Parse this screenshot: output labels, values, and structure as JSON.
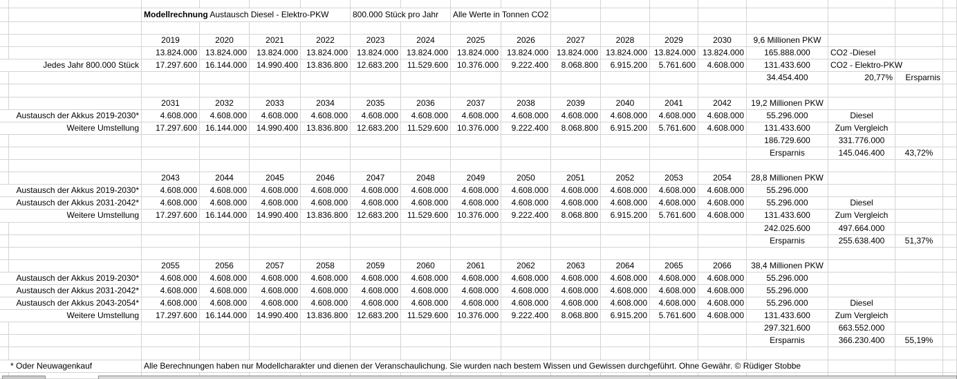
{
  "app": "spreadsheet",
  "colors": {
    "gridline": "#d4d4d4",
    "text": "#000000",
    "background": "#ffffff",
    "tab_fill": "#c9c9c9",
    "tab_fill_long": "#dadada",
    "tab_border": "#8f8f8f"
  },
  "tabbar": {
    "left_tab": "sheet-tab",
    "long_bar": "horizontal-scrollbar"
  },
  "series": {
    "years1": [
      "2019",
      "2020",
      "2021",
      "2022",
      "2023",
      "2024",
      "2025",
      "2026",
      "2027",
      "2028",
      "2029",
      "2030"
    ],
    "years2": [
      "2031",
      "2032",
      "2033",
      "2034",
      "2035",
      "2036",
      "2037",
      "2038",
      "2039",
      "2040",
      "2041",
      "2042"
    ],
    "years3": [
      "2043",
      "2044",
      "2045",
      "2046",
      "2047",
      "2048",
      "2049",
      "2050",
      "2051",
      "2052",
      "2053",
      "2054"
    ],
    "years4": [
      "2055",
      "2056",
      "2057",
      "2058",
      "2059",
      "2060",
      "2061",
      "2062",
      "2063",
      "2064",
      "2065",
      "2066"
    ],
    "elektro": [
      "17.297.600",
      "16.144.000",
      "14.990.400",
      "13.836.800",
      "12.683.200",
      "11.529.600",
      "10.376.000",
      "9.222.400",
      "8.068.800",
      "6.915.200",
      "5.761.600",
      "4.608.000"
    ]
  },
  "rows": [
    {
      "name": "spacer-row",
      "h": 12,
      "cells": []
    },
    {
      "name": "title-row",
      "h": 20,
      "cells": [
        {},
        {},
        {
          "c": 4,
          "a": "l",
          "n": "sheet-title",
          "parts": [
            {
              "t": "Modellrechnung",
              "b": true
            },
            {
              "t": " Austausch Diesel - Elektro-PKW"
            }
          ]
        },
        {
          "c": 2,
          "a": "l",
          "t": "800.000 Stück pro Jahr",
          "n": "per-year-label"
        },
        {
          "c": 2,
          "a": "l",
          "t": "Alle Werte in Tonnen CO2",
          "n": "units-label"
        },
        {
          "r": 8
        }
      ]
    },
    {
      "name": "spacer-row",
      "cells": []
    },
    {
      "name": "years-row",
      "cells": [
        {},
        {},
        {
          "vals": "years1",
          "a": "c",
          "n": "year-header"
        },
        {
          "t": "9,6 Millionen PKW",
          "a": "c",
          "n": "pkw-count-label"
        },
        {},
        {},
        {}
      ]
    },
    {
      "name": "data-row",
      "cells": [
        {},
        {},
        {
          "t": "13.824.000",
          "a": "r",
          "r": 12,
          "n": "value-cell"
        },
        {
          "t": "165.888.000",
          "a": "c",
          "n": "total-cell"
        },
        {
          "t": "CO2 -Diesel",
          "a": "l",
          "n": "series-label"
        },
        {},
        {}
      ]
    },
    {
      "name": "data-row",
      "cells": [
        {
          "c": 2,
          "t": "Jedes Jahr 800.000 Stück",
          "a": "r",
          "n": "row-label"
        },
        {
          "vals": "elektro",
          "a": "r",
          "n": "value-cell"
        },
        {
          "t": "131.433.600",
          "a": "c",
          "n": "total-cell"
        },
        {
          "t": "CO2 - Elektro-PKW",
          "a": "l",
          "n": "series-label"
        },
        {},
        {}
      ]
    },
    {
      "name": "summary-row",
      "cells": [
        {},
        {},
        {
          "r": 12
        },
        {
          "t": "34.454.400",
          "a": "c",
          "n": "savings-total"
        },
        {
          "t": "20,77%",
          "a": "r",
          "n": "savings-percent"
        },
        {
          "t": "Ersparnis",
          "a": "r",
          "n": "savings-label"
        },
        {}
      ]
    },
    {
      "name": "spacer-row",
      "cells": []
    },
    {
      "name": "years-row",
      "cells": [
        {},
        {},
        {
          "vals": "years2",
          "a": "c",
          "n": "year-header"
        },
        {
          "t": "19,2 Millionen PKW",
          "a": "c",
          "n": "pkw-count-label"
        },
        {},
        {},
        {}
      ]
    },
    {
      "name": "data-row",
      "cells": [
        {
          "c": 2,
          "t": "Austausch der Akkus 2019-2030*",
          "a": "r",
          "n": "row-label"
        },
        {
          "t": "4.608.000",
          "a": "r",
          "r": 12,
          "n": "value-cell"
        },
        {
          "t": "55.296.000",
          "a": "c",
          "n": "total-cell"
        },
        {
          "t": "Diesel",
          "a": "c",
          "n": "series-label"
        },
        {},
        {}
      ]
    },
    {
      "name": "data-row",
      "cells": [
        {
          "c": 2,
          "t": "Weitere Umstellung",
          "a": "r",
          "n": "row-label"
        },
        {
          "vals": "elektro",
          "a": "r",
          "n": "value-cell"
        },
        {
          "t": "131.433.600",
          "a": "c",
          "n": "total-cell"
        },
        {
          "t": "Zum Vergleich",
          "a": "c",
          "n": "series-label"
        },
        {},
        {}
      ]
    },
    {
      "name": "summary-row",
      "cells": [
        {},
        {},
        {
          "r": 12
        },
        {
          "t": "186.729.600",
          "a": "c",
          "n": "cumulative-total"
        },
        {
          "t": "331.776.000",
          "a": "c",
          "n": "diesel-comparison-total"
        },
        {},
        {}
      ]
    },
    {
      "name": "summary-row",
      "cells": [
        {},
        {},
        {
          "r": 12
        },
        {
          "t": "Ersparnis",
          "a": "c",
          "n": "savings-label"
        },
        {
          "t": "145.046.400",
          "a": "c",
          "n": "savings-total"
        },
        {
          "t": "43,72%",
          "a": "c",
          "n": "savings-percent"
        },
        {}
      ]
    },
    {
      "name": "spacer-row",
      "cells": []
    },
    {
      "name": "years-row",
      "cells": [
        {},
        {},
        {
          "vals": "years3",
          "a": "c",
          "n": "year-header"
        },
        {
          "t": "28,8 Millionen PKW",
          "a": "c",
          "n": "pkw-count-label"
        },
        {},
        {},
        {}
      ]
    },
    {
      "name": "data-row",
      "cells": [
        {
          "c": 2,
          "t": "Austausch der Akkus 2019-2030*",
          "a": "r",
          "n": "row-label"
        },
        {
          "t": "4.608.000",
          "a": "r",
          "r": 12,
          "n": "value-cell"
        },
        {
          "t": "55.296.000",
          "a": "c",
          "n": "total-cell"
        },
        {},
        {},
        {}
      ]
    },
    {
      "name": "data-row",
      "cells": [
        {
          "c": 2,
          "t": "Austausch der Akkus 2031-2042*",
          "a": "r",
          "n": "row-label"
        },
        {
          "t": "4.608.000",
          "a": "r",
          "r": 12,
          "n": "value-cell"
        },
        {
          "t": "55.296.000",
          "a": "c",
          "n": "total-cell"
        },
        {
          "t": "Diesel",
          "a": "c",
          "n": "series-label"
        },
        {},
        {}
      ]
    },
    {
      "name": "data-row",
      "cells": [
        {
          "c": 2,
          "t": "Weitere Umstellung",
          "a": "r",
          "n": "row-label"
        },
        {
          "vals": "elektro",
          "a": "r",
          "n": "value-cell"
        },
        {
          "t": "131.433.600",
          "a": "c",
          "n": "total-cell"
        },
        {
          "t": "Zum Vergleich",
          "a": "c",
          "n": "series-label"
        },
        {},
        {}
      ]
    },
    {
      "name": "summary-row",
      "cells": [
        {},
        {},
        {
          "r": 12
        },
        {
          "t": "242.025.600",
          "a": "c",
          "n": "cumulative-total"
        },
        {
          "t": "497.664.000",
          "a": "c",
          "n": "diesel-comparison-total"
        },
        {},
        {}
      ]
    },
    {
      "name": "summary-row",
      "cells": [
        {},
        {},
        {
          "r": 12
        },
        {
          "t": "Ersparnis",
          "a": "c",
          "n": "savings-label"
        },
        {
          "t": "255.638.400",
          "a": "c",
          "n": "savings-total"
        },
        {
          "t": "51,37%",
          "a": "c",
          "n": "savings-percent"
        },
        {}
      ]
    },
    {
      "name": "spacer-row",
      "cells": []
    },
    {
      "name": "years-row",
      "cells": [
        {},
        {},
        {
          "vals": "years4",
          "a": "c",
          "n": "year-header"
        },
        {
          "t": "38,4  Millionen PKW",
          "a": "c",
          "n": "pkw-count-label"
        },
        {},
        {},
        {}
      ]
    },
    {
      "name": "data-row",
      "cells": [
        {
          "c": 2,
          "t": "Austausch der Akkus 2019-2030*",
          "a": "r",
          "n": "row-label"
        },
        {
          "t": "4.608.000",
          "a": "r",
          "r": 12,
          "n": "value-cell"
        },
        {
          "t": "55.296.000",
          "a": "c",
          "n": "total-cell"
        },
        {},
        {},
        {}
      ]
    },
    {
      "name": "data-row",
      "cells": [
        {
          "c": 2,
          "t": "Austausch der Akkus 2031-2042*",
          "a": "r",
          "n": "row-label"
        },
        {
          "t": "4.608.000",
          "a": "r",
          "r": 12,
          "n": "value-cell"
        },
        {
          "t": "55.296.000",
          "a": "c",
          "n": "total-cell"
        },
        {},
        {},
        {}
      ]
    },
    {
      "name": "data-row",
      "cells": [
        {
          "c": 2,
          "t": "Austausch der Akkus 2043-2054*",
          "a": "r",
          "n": "row-label"
        },
        {
          "t": "4.608.000",
          "a": "r",
          "r": 12,
          "n": "value-cell"
        },
        {
          "t": "55.296.000",
          "a": "c",
          "n": "total-cell"
        },
        {
          "t": "Diesel",
          "a": "c",
          "n": "series-label"
        },
        {},
        {}
      ]
    },
    {
      "name": "data-row",
      "cells": [
        {
          "c": 2,
          "t": "Weitere Umstellung",
          "a": "r",
          "n": "row-label"
        },
        {
          "vals": "elektro",
          "a": "r",
          "n": "value-cell"
        },
        {
          "t": "131.433.600",
          "a": "c",
          "n": "total-cell"
        },
        {
          "t": "Zum Vergleich",
          "a": "c",
          "n": "series-label"
        },
        {},
        {}
      ]
    },
    {
      "name": "summary-row",
      "cells": [
        {},
        {},
        {
          "r": 12
        },
        {
          "t": "297.321.600",
          "a": "c",
          "n": "cumulative-total"
        },
        {
          "t": "663.552.000",
          "a": "c",
          "n": "diesel-comparison-total"
        },
        {},
        {}
      ]
    },
    {
      "name": "summary-row",
      "cells": [
        {},
        {},
        {
          "r": 12
        },
        {
          "t": "Ersparnis",
          "a": "c",
          "n": "savings-label"
        },
        {
          "t": "366.230.400",
          "a": "c",
          "n": "savings-total"
        },
        {
          "t": "55,19%",
          "a": "c",
          "n": "savings-percent"
        },
        {}
      ]
    },
    {
      "name": "spacer-row",
      "cells": []
    },
    {
      "name": "footer-row",
      "cells": [
        {
          "c": 2,
          "t": "* Oder Neuwagenkauf",
          "a": "l",
          "padl": 15,
          "n": "footnote"
        },
        {
          "c": 13,
          "t": "Alle Berechnungen haben nur Modellcharakter und dienen der Veranschaulichung. Sie wurden nach bestem Wissen und Gewissen durchgeführt. Ohne Gewähr. © Rüdiger Stobbe",
          "a": "l",
          "n": "disclaimer"
        },
        {},
        {},
        {}
      ]
    },
    {
      "name": "spacer-row",
      "h": 9,
      "cells": []
    }
  ]
}
